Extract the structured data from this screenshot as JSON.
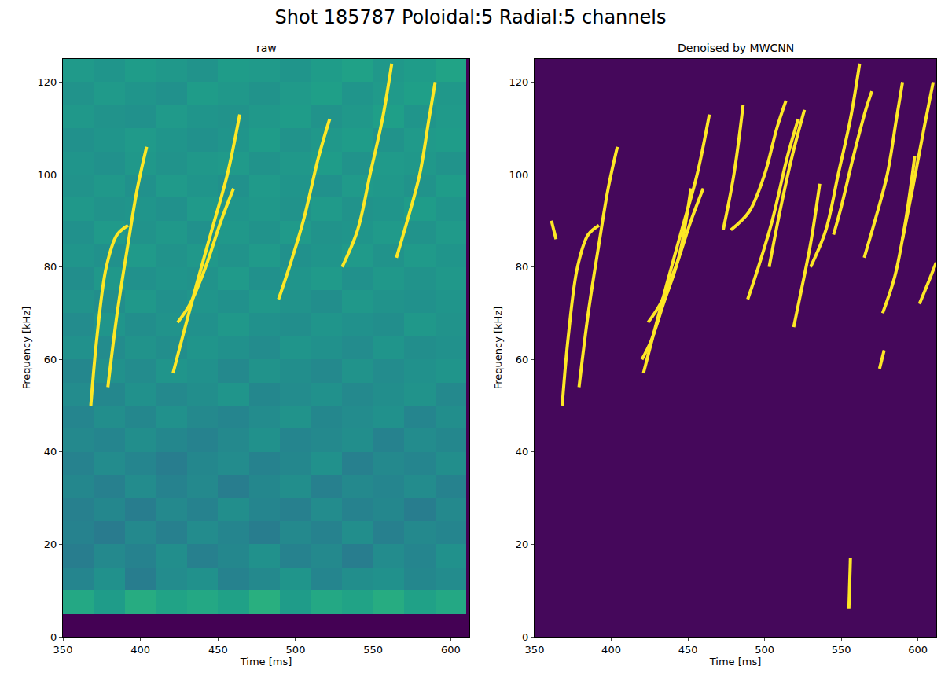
{
  "chart_data": {
    "title": "Shot 185787 Poloidal:5 Radial:5 channels",
    "panels": [
      {
        "type": "heatmap",
        "title": "raw",
        "xlabel": "Time [ms]",
        "ylabel": "Frequency [kHz]",
        "xlim": [
          350,
          612
        ],
        "ylim": [
          0,
          125
        ],
        "xticks": [
          350,
          400,
          450,
          500,
          550,
          600
        ],
        "yticks": [
          0,
          20,
          40,
          60,
          80,
          100,
          120
        ],
        "zlim": [
          0,
          1
        ],
        "cells": {
          "x": [
            360,
            380,
            400,
            420,
            440,
            460,
            480,
            500,
            520,
            540,
            560,
            580,
            600
          ],
          "y": [
            2.5,
            7.5,
            12.5,
            17.5,
            22.5,
            27.5,
            32.5,
            37.5,
            42.5,
            47.5,
            52.5,
            57.5,
            62.5,
            67.5,
            72.5,
            77.5,
            82.5,
            87.5,
            92.5,
            97.5,
            102.5,
            107.5,
            112.5,
            117.5,
            122.5
          ],
          "z": [
            [
              0,
              0,
              0,
              0,
              0,
              0,
              0,
              0,
              0,
              0,
              0,
              0,
              0
            ],
            [
              0.6,
              0.55,
              0.62,
              0.58,
              0.6,
              0.57,
              0.63,
              0.55,
              0.6,
              0.58,
              0.62,
              0.57,
              0.6
            ],
            [
              0.45,
              0.5,
              0.42,
              0.48,
              0.5,
              0.44,
              0.47,
              0.52,
              0.45,
              0.49,
              0.5,
              0.46,
              0.48
            ],
            [
              0.42,
              0.47,
              0.44,
              0.49,
              0.43,
              0.46,
              0.5,
              0.44,
              0.47,
              0.42,
              0.48,
              0.45,
              0.5
            ],
            [
              0.44,
              0.41,
              0.47,
              0.43,
              0.48,
              0.45,
              0.42,
              0.47,
              0.44,
              0.49,
              0.43,
              0.47,
              0.45
            ],
            [
              0.43,
              0.46,
              0.42,
              0.47,
              0.44,
              0.49,
              0.45,
              0.43,
              0.48,
              0.44,
              0.46,
              0.42,
              0.47
            ],
            [
              0.46,
              0.43,
              0.48,
              0.44,
              0.47,
              0.42,
              0.46,
              0.49,
              0.43,
              0.47,
              0.45,
              0.48,
              0.44
            ],
            [
              0.44,
              0.48,
              0.45,
              0.42,
              0.46,
              0.48,
              0.44,
              0.46,
              0.5,
              0.43,
              0.47,
              0.45,
              0.49
            ],
            [
              0.47,
              0.45,
              0.49,
              0.46,
              0.44,
              0.47,
              0.5,
              0.45,
              0.47,
              0.49,
              0.44,
              0.48,
              0.46
            ],
            [
              0.45,
              0.49,
              0.46,
              0.5,
              0.47,
              0.45,
              0.48,
              0.51,
              0.46,
              0.48,
              0.5,
              0.45,
              0.49
            ],
            [
              0.48,
              0.46,
              0.5,
              0.47,
              0.49,
              0.52,
              0.46,
              0.48,
              0.5,
              0.47,
              0.49,
              0.51,
              0.47
            ],
            [
              0.46,
              0.5,
              0.48,
              0.52,
              0.5,
              0.47,
              0.51,
              0.49,
              0.47,
              0.51,
              0.48,
              0.5,
              0.52
            ],
            [
              0.5,
              0.48,
              0.51,
              0.49,
              0.52,
              0.5,
              0.48,
              0.52,
              0.5,
              0.48,
              0.52,
              0.49,
              0.5
            ],
            [
              0.48,
              0.52,
              0.49,
              0.51,
              0.5,
              0.53,
              0.5,
              0.49,
              0.52,
              0.5,
              0.49,
              0.53,
              0.51
            ],
            [
              0.51,
              0.49,
              0.53,
              0.5,
              0.52,
              0.5,
              0.53,
              0.51,
              0.49,
              0.53,
              0.51,
              0.5,
              0.52
            ],
            [
              0.49,
              0.53,
              0.5,
              0.52,
              0.51,
              0.54,
              0.5,
              0.52,
              0.54,
              0.5,
              0.53,
              0.51,
              0.53
            ],
            [
              0.52,
              0.5,
              0.54,
              0.51,
              0.53,
              0.51,
              0.54,
              0.5,
              0.52,
              0.54,
              0.51,
              0.54,
              0.52
            ],
            [
              0.5,
              0.54,
              0.51,
              0.53,
              0.5,
              0.53,
              0.51,
              0.54,
              0.51,
              0.52,
              0.54,
              0.51,
              0.54
            ],
            [
              0.53,
              0.51,
              0.52,
              0.5,
              0.54,
              0.52,
              0.53,
              0.51,
              0.54,
              0.51,
              0.52,
              0.55,
              0.52
            ],
            [
              0.51,
              0.53,
              0.5,
              0.54,
              0.52,
              0.5,
              0.54,
              0.52,
              0.5,
              0.54,
              0.53,
              0.51,
              0.55
            ],
            [
              0.52,
              0.5,
              0.53,
              0.51,
              0.53,
              0.54,
              0.51,
              0.53,
              0.55,
              0.51,
              0.54,
              0.53,
              0.51
            ],
            [
              0.5,
              0.52,
              0.54,
              0.52,
              0.5,
              0.52,
              0.55,
              0.51,
              0.53,
              0.55,
              0.51,
              0.54,
              0.55
            ],
            [
              0.53,
              0.51,
              0.5,
              0.54,
              0.52,
              0.51,
              0.53,
              0.55,
              0.51,
              0.53,
              0.56,
              0.52,
              0.54
            ],
            [
              0.51,
              0.54,
              0.52,
              0.5,
              0.55,
              0.53,
              0.51,
              0.54,
              0.56,
              0.52,
              0.54,
              0.56,
              0.53
            ],
            [
              0.54,
              0.52,
              0.55,
              0.53,
              0.51,
              0.55,
              0.54,
              0.52,
              0.55,
              0.57,
              0.53,
              0.55,
              0.58
            ]
          ]
        },
        "color": "#fde725",
        "series": [
          {
            "x": [
              368,
              372,
              378,
              385,
              392
            ],
            "values": [
              50,
              65,
              80,
              87,
              89
            ]
          },
          {
            "x": [
              379,
              385,
              392,
              398,
              404
            ],
            "values": [
              54,
              70,
              85,
              97,
              106
            ]
          },
          {
            "x": [
              421,
              428,
              436,
              446,
              456,
              464
            ],
            "values": [
              57,
              66,
              76,
              88,
              100,
              113
            ]
          },
          {
            "x": [
              424,
              432,
              442,
              452,
              460
            ],
            "values": [
              68,
              72,
              80,
              90,
              97
            ]
          },
          {
            "x": [
              489,
              496,
              505,
              515,
              522
            ],
            "values": [
              73,
              80,
              90,
              104,
              112
            ]
          },
          {
            "x": [
              530,
              540,
              548,
              556,
              562
            ],
            "values": [
              80,
              88,
              100,
              112,
              124
            ]
          },
          {
            "x": [
              565,
              572,
              580,
              586,
              590
            ],
            "values": [
              82,
              90,
              100,
              112,
              120
            ]
          }
        ]
      },
      {
        "type": "heatmap",
        "title": "Denoised by MWCNN",
        "xlabel": "Time [ms]",
        "ylabel": "Frequency [kHz]",
        "xlim": [
          350,
          612
        ],
        "ylim": [
          0,
          125
        ],
        "xticks": [
          350,
          400,
          450,
          500,
          550,
          600
        ],
        "yticks": [
          0,
          20,
          40,
          60,
          80,
          100,
          120
        ],
        "zlim": [
          0,
          1
        ],
        "cells": {
          "x": [
            415.5,
            546.5
          ],
          "y": [
            31.25,
            93.75
          ],
          "z": [
            [
              0.02,
              0.02
            ],
            [
              0.02,
              0.02
            ]
          ]
        },
        "color": "#fde725",
        "series": [
          {
            "x": [
              361,
              364
            ],
            "values": [
              90,
              86
            ]
          },
          {
            "x": [
              368,
              372,
              378,
              385,
              392
            ],
            "values": [
              50,
              65,
              80,
              87,
              89
            ]
          },
          {
            "x": [
              379,
              385,
              392,
              398,
              404
            ],
            "values": [
              54,
              70,
              85,
              97,
              106
            ]
          },
          {
            "x": [
              421,
              428,
              436,
              446,
              456,
              464
            ],
            "values": [
              57,
              66,
              76,
              88,
              100,
              113
            ]
          },
          {
            "x": [
              424,
              432,
              442,
              452,
              460
            ],
            "values": [
              68,
              72,
              80,
              90,
              97
            ]
          },
          {
            "x": [
              420,
              426,
              434,
              444,
              452
            ],
            "values": [
              60,
              64,
              72,
              82,
              97
            ]
          },
          {
            "x": [
              473,
              480,
              486
            ],
            "values": [
              88,
              100,
              115
            ]
          },
          {
            "x": [
              478,
              490,
              500,
              508,
              514
            ],
            "values": [
              88,
              92,
              100,
              110,
              116
            ]
          },
          {
            "x": [
              489,
              496,
              505,
              515,
              522
            ],
            "values": [
              73,
              80,
              90,
              104,
              112
            ]
          },
          {
            "x": [
              503,
              510,
              518,
              526
            ],
            "values": [
              80,
              92,
              104,
              114
            ]
          },
          {
            "x": [
              519,
              524,
              530,
              536
            ],
            "values": [
              67,
              75,
              85,
              98
            ]
          },
          {
            "x": [
              530,
              540,
              548,
              556,
              562
            ],
            "values": [
              80,
              88,
              100,
              112,
              124
            ]
          },
          {
            "x": [
              545,
              550,
              558,
              566,
              570
            ],
            "values": [
              87,
              93,
              104,
              114,
              118
            ]
          },
          {
            "x": [
              565,
              572,
              580,
              586,
              590
            ],
            "values": [
              82,
              90,
              100,
              112,
              120
            ]
          },
          {
            "x": [
              577,
              585,
              592,
              598
            ],
            "values": [
              70,
              78,
              90,
              104
            ]
          },
          {
            "x": [
              590,
              596,
              604,
              610
            ],
            "values": [
              86,
              96,
              110,
              120
            ]
          },
          {
            "x": [
              601,
              606,
              612
            ],
            "values": [
              72,
              76,
              81
            ]
          },
          {
            "x": [
              575,
              578
            ],
            "values": [
              58,
              62
            ]
          },
          {
            "x": [
              555,
              556
            ],
            "values": [
              6,
              17
            ]
          }
        ]
      }
    ]
  }
}
